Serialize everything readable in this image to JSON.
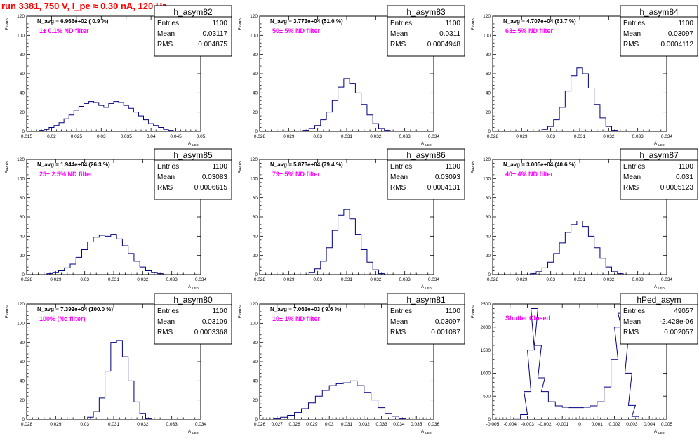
{
  "page_title": "run 3381,   750 V, I_pe ≈ 0.30 nA, 120 Hz",
  "chart_data": [
    {
      "type": "histogram",
      "name": "h_asym82",
      "stats": {
        "entries_label": "Entries",
        "entries": "1100",
        "mean_label": "Mean",
        "mean": "0.03117",
        "rms_label": "RMS",
        "rms": "0.004875"
      },
      "navg": "N_avg = 6.966e+02 ( 0.9 %)",
      "filter": "1± 0.1% ND filter",
      "xlabel": "A",
      "xlabel_sub": "LED",
      "ylabel": "Events",
      "xlim": [
        0.015,
        0.05
      ],
      "ylim": [
        0,
        120
      ],
      "xticks": [
        "0.015",
        "0.02",
        "0.025",
        "0.03",
        "0.035",
        "0.04",
        "0.045",
        "0.05"
      ],
      "yticks": [
        "0",
        "20",
        "40",
        "60",
        "80",
        "100",
        "120"
      ],
      "bins": {
        "x": [
          0.018,
          0.019,
          0.02,
          0.021,
          0.022,
          0.023,
          0.024,
          0.025,
          0.026,
          0.027,
          0.028,
          0.029,
          0.03,
          0.031,
          0.032,
          0.033,
          0.034,
          0.035,
          0.036,
          0.037,
          0.038,
          0.039,
          0.04,
          0.041,
          0.042,
          0.043,
          0.044
        ],
        "y": [
          1,
          2,
          4,
          6,
          9,
          13,
          17,
          22,
          26,
          29,
          31,
          30,
          27,
          25,
          29,
          31,
          30,
          27,
          24,
          20,
          16,
          12,
          8,
          6,
          4,
          2,
          1
        ]
      }
    },
    {
      "type": "histogram",
      "name": "h_asym83",
      "stats": {
        "entries_label": "Entries",
        "entries": "1100",
        "mean_label": "Mean",
        "mean": "0.0311",
        "rms_label": "RMS",
        "rms": "0.0004948"
      },
      "navg": "N_avg = 3.773e+04 (51.0 %)",
      "filter": "50± 5% ND filter",
      "xlabel": "A",
      "xlabel_sub": "LED",
      "ylabel": "Events",
      "xlim": [
        0.028,
        0.034
      ],
      "ylim": [
        0,
        120
      ],
      "xticks": [
        "0.028",
        "0.029",
        "0.03",
        "0.031",
        "0.032",
        "0.033",
        "0.034"
      ],
      "yticks": [
        "0",
        "20",
        "40",
        "60",
        "80",
        "100",
        "120"
      ],
      "bins": {
        "x": [
          0.0296,
          0.0298,
          0.03,
          0.0302,
          0.0304,
          0.0306,
          0.0308,
          0.031,
          0.0312,
          0.0314,
          0.0316,
          0.0318,
          0.032,
          0.0322,
          0.0324
        ],
        "y": [
          1,
          3,
          6,
          12,
          20,
          32,
          46,
          55,
          50,
          40,
          28,
          17,
          8,
          3,
          1
        ]
      }
    },
    {
      "type": "histogram",
      "name": "h_asym84",
      "stats": {
        "entries_label": "Entries",
        "entries": "1100",
        "mean_label": "Mean",
        "mean": "0.03097",
        "rms_label": "RMS",
        "rms": "0.0004112"
      },
      "navg": "N_avg = 4.707e+04 (63.7 %)",
      "filter": "63± 5% ND filter",
      "xlabel": "A",
      "xlabel_sub": "LED",
      "ylabel": "Events",
      "xlim": [
        0.028,
        0.034
      ],
      "ylim": [
        0,
        120
      ],
      "xticks": [
        "0.028",
        "0.029",
        "0.03",
        "0.031",
        "0.032",
        "0.033",
        "0.034"
      ],
      "yticks": [
        "0",
        "20",
        "40",
        "60",
        "80",
        "100",
        "120"
      ],
      "bins": {
        "x": [
          0.0298,
          0.03,
          0.0302,
          0.0304,
          0.0306,
          0.0308,
          0.031,
          0.0312,
          0.0314,
          0.0316,
          0.0318,
          0.032,
          0.0322
        ],
        "y": [
          2,
          5,
          12,
          25,
          42,
          58,
          66,
          60,
          45,
          28,
          14,
          5,
          1
        ]
      }
    },
    {
      "type": "histogram",
      "name": "h_asym85",
      "stats": {
        "entries_label": "Entries",
        "entries": "1100",
        "mean_label": "Mean",
        "mean": "0.03083",
        "rms_label": "RMS",
        "rms": "0.0006615"
      },
      "navg": "N_avg = 1.944e+04 (26.3 %)",
      "filter": "25± 2.5% ND filter",
      "xlabel": "A",
      "xlabel_sub": "LED",
      "ylabel": "Events",
      "xlim": [
        0.028,
        0.034
      ],
      "ylim": [
        0,
        120
      ],
      "xticks": [
        "0.028",
        "0.029",
        "0.03",
        "0.031",
        "0.032",
        "0.033",
        "0.034"
      ],
      "yticks": [
        "0",
        "20",
        "40",
        "60",
        "80",
        "100",
        "120"
      ],
      "bins": {
        "x": [
          0.0288,
          0.029,
          0.0292,
          0.0294,
          0.0296,
          0.0298,
          0.03,
          0.0302,
          0.0304,
          0.0306,
          0.0308,
          0.031,
          0.0312,
          0.0314,
          0.0316,
          0.0318,
          0.032,
          0.0322,
          0.0324,
          0.0326
        ],
        "y": [
          1,
          2,
          4,
          7,
          11,
          18,
          26,
          34,
          39,
          41,
          40,
          42,
          37,
          30,
          22,
          14,
          8,
          4,
          2,
          1
        ]
      }
    },
    {
      "type": "histogram",
      "name": "h_asym86",
      "stats": {
        "entries_label": "Entries",
        "entries": "1100",
        "mean_label": "Mean",
        "mean": "0.03093",
        "rms_label": "RMS",
        "rms": "0.0004131"
      },
      "navg": "N_avg = 5.873e+04 (79.4 %)",
      "filter": "79± 5% ND filter",
      "xlabel": "A",
      "xlabel_sub": "LED",
      "ylabel": "Events",
      "xlim": [
        0.028,
        0.034
      ],
      "ylim": [
        0,
        120
      ],
      "xticks": [
        "0.028",
        "0.029",
        "0.03",
        "0.031",
        "0.032",
        "0.033",
        "0.034"
      ],
      "yticks": [
        "0",
        "20",
        "40",
        "60",
        "80",
        "100",
        "120"
      ],
      "bins": {
        "x": [
          0.0298,
          0.03,
          0.0302,
          0.0304,
          0.0306,
          0.0308,
          0.031,
          0.0312,
          0.0314,
          0.0316,
          0.0318,
          0.032,
          0.0322
        ],
        "y": [
          2,
          6,
          14,
          28,
          46,
          62,
          68,
          58,
          42,
          26,
          13,
          5,
          1
        ]
      }
    },
    {
      "type": "histogram",
      "name": "h_asym87",
      "stats": {
        "entries_label": "Entries",
        "entries": "1100",
        "mean_label": "Mean",
        "mean": "0.031",
        "rms_label": "RMS",
        "rms": "0.0005123"
      },
      "navg": "N_avg = 3.005e+04 (40.6 %)",
      "filter": "40± 4% ND filter",
      "xlabel": "A",
      "xlabel_sub": "LED",
      "ylabel": "Events",
      "xlim": [
        0.028,
        0.034
      ],
      "ylim": [
        0,
        120
      ],
      "xticks": [
        "0.028",
        "0.029",
        "0.03",
        "0.031",
        "0.032",
        "0.033",
        "0.034"
      ],
      "yticks": [
        "0",
        "20",
        "40",
        "60",
        "80",
        "100",
        "120"
      ],
      "bins": {
        "x": [
          0.0294,
          0.0296,
          0.0298,
          0.03,
          0.0302,
          0.0304,
          0.0306,
          0.0308,
          0.031,
          0.0312,
          0.0314,
          0.0316,
          0.0318,
          0.032,
          0.0322,
          0.0324
        ],
        "y": [
          1,
          3,
          7,
          13,
          22,
          33,
          44,
          52,
          56,
          50,
          40,
          28,
          17,
          8,
          3,
          1
        ]
      }
    },
    {
      "type": "histogram",
      "name": "h_asym80",
      "stats": {
        "entries_label": "Entries",
        "entries": "1100",
        "mean_label": "Mean",
        "mean": "0.03109",
        "rms_label": "RMS",
        "rms": "0.0003368"
      },
      "navg": "N_avg = 7.392e+04 (100.0 %)",
      "filter": "100% (No filter)",
      "xlabel": "A",
      "xlabel_sub": "LED",
      "ylabel": "Events",
      "xlim": [
        0.028,
        0.034
      ],
      "ylim": [
        0,
        120
      ],
      "xticks": [
        "0.028",
        "0.029",
        "0.03",
        "0.031",
        "0.032",
        "0.033",
        "0.034"
      ],
      "yticks": [
        "0",
        "20",
        "40",
        "60",
        "80",
        "100",
        "120"
      ],
      "bins": {
        "x": [
          0.0302,
          0.0304,
          0.0306,
          0.0308,
          0.031,
          0.0312,
          0.0314,
          0.0316,
          0.0318,
          0.032,
          0.0322
        ],
        "y": [
          2,
          8,
          22,
          50,
          80,
          82,
          65,
          40,
          18,
          6,
          1
        ]
      }
    },
    {
      "type": "histogram",
      "name": "h_asym81",
      "stats": {
        "entries_label": "Entries",
        "entries": "1100",
        "mean_label": "Mean",
        "mean": "0.03097",
        "rms_label": "RMS",
        "rms": "0.001087"
      },
      "navg": "N_avg = 7.061e+03 ( 9.6 %)",
      "filter": "10± 1% ND filter",
      "xlabel": "A",
      "xlabel_sub": "LED",
      "ylabel": "Events",
      "xlim": [
        0.026,
        0.036
      ],
      "ylim": [
        0,
        120
      ],
      "xticks": [
        "0.026",
        "0.027",
        "0.028",
        "0.029",
        "0.03",
        "0.031",
        "0.032",
        "0.033",
        "0.034",
        "0.035",
        "0.036"
      ],
      "yticks": [
        "0",
        "20",
        "40",
        "60",
        "80",
        "100",
        "120"
      ],
      "bins": {
        "x": [
          0.027,
          0.0274,
          0.0278,
          0.0282,
          0.0286,
          0.029,
          0.0294,
          0.0298,
          0.0302,
          0.0306,
          0.031,
          0.0314,
          0.0318,
          0.0322,
          0.0326,
          0.033,
          0.0334,
          0.0338,
          0.0342
        ],
        "y": [
          1,
          2,
          4,
          7,
          11,
          17,
          24,
          30,
          35,
          37,
          38,
          40,
          35,
          28,
          20,
          12,
          6,
          3,
          1
        ]
      }
    },
    {
      "type": "histogram",
      "name": "hPed_asym",
      "stats": {
        "entries_label": "Entries",
        "entries": "49057",
        "mean_label": "Mean",
        "mean": "-2.428e-06",
        "rms_label": "RMS",
        "rms": "0.002057"
      },
      "navg": "",
      "filter": "Shutter Closed",
      "xlabel": "A",
      "xlabel_sub": "LED",
      "ylabel": "Events",
      "xlim": [
        -0.005,
        0.005
      ],
      "ylim": [
        0,
        2500
      ],
      "xticks": [
        "-0.005",
        "-0.004",
        "-0.003",
        "-0.002",
        "-0.001",
        "0",
        "0.001",
        "0.002",
        "0.003",
        "0.004",
        "0.005"
      ],
      "yticks": [
        "0",
        "500",
        "1000",
        "1500",
        "2000",
        "2500"
      ],
      "bins": {
        "x": [
          -0.0036,
          -0.0032,
          -0.003,
          -0.0028,
          -0.0026,
          -0.0024,
          -0.0022,
          -0.002,
          -0.0016,
          -0.0012,
          -0.0008,
          -0.0004,
          0,
          0.0004,
          0.0008,
          0.0012,
          0.0016,
          0.002,
          0.0022,
          0.0024,
          0.0026,
          0.0028,
          0.003,
          0.0032,
          0.0036
        ],
        "y": [
          10,
          100,
          600,
          1500,
          2400,
          1600,
          900,
          600,
          380,
          290,
          260,
          250,
          250,
          260,
          290,
          380,
          700,
          1300,
          2000,
          2300,
          1800,
          1000,
          300,
          60,
          5
        ]
      }
    }
  ]
}
